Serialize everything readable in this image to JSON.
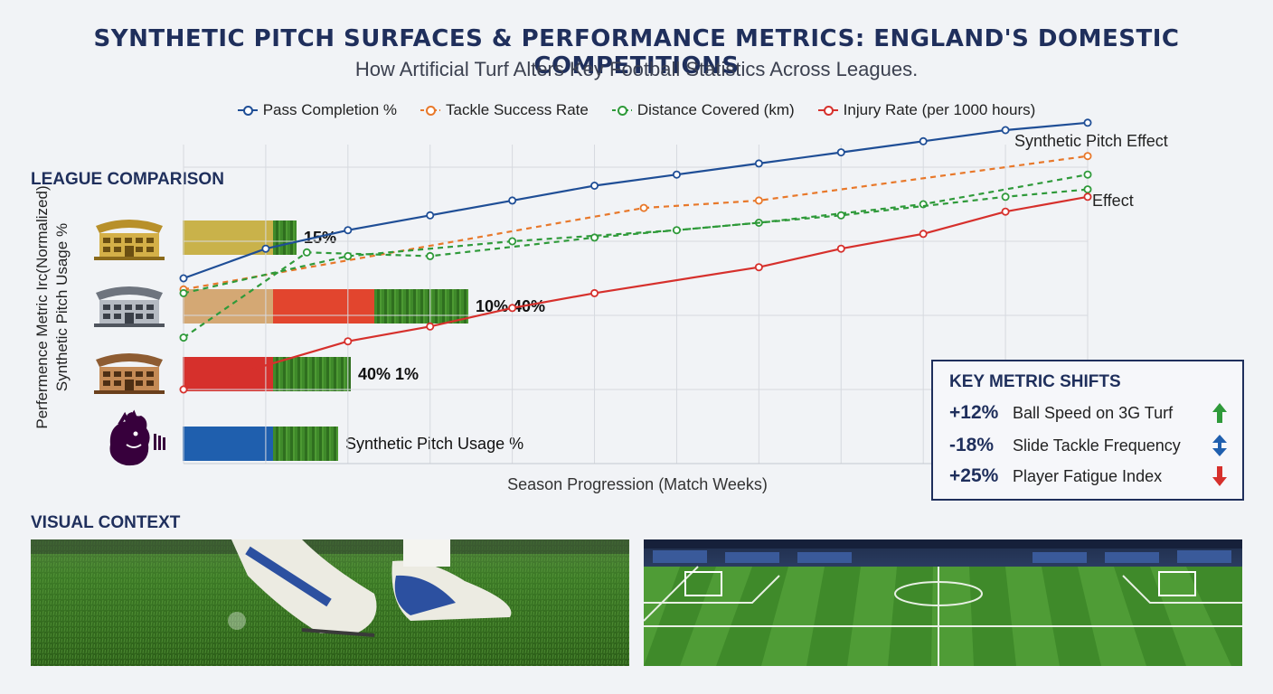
{
  "title": "SYNTHETIC PITCH SURFACES & PERFORMANCE METRICS: ENGLAND'S DOMESTIC COMPETITIONS",
  "subtitle": "How Artificial Turf Alters Key Football Statistics Across Leagues.",
  "colors": {
    "blue": "#1f4e96",
    "orange": "#e8782a",
    "green": "#2f9a3a",
    "red": "#d6302c",
    "navy": "#1f2f5c"
  },
  "league_comparison": {
    "label": "LEAGUE COMPARISON",
    "rows": [
      {
        "icon": "stadium-gold-icon",
        "segments": [
          {
            "color": "#c9b24a",
            "value": 50
          },
          {
            "color": "turf",
            "value": 13
          }
        ],
        "label": "15%"
      },
      {
        "icon": "stadium-grey-icon",
        "segments": [
          {
            "color": "#d4a874",
            "value": 50
          },
          {
            "color": "#e2452e",
            "value": 56
          },
          {
            "color": "turf",
            "value": 52
          }
        ],
        "label": "10% 40%"
      },
      {
        "icon": "stadium-bronze-icon",
        "segments": [
          {
            "color": "#d6302c",
            "value": 50
          },
          {
            "color": "turf",
            "value": 43
          }
        ],
        "label": "40% 1%"
      },
      {
        "icon": "premier-league-lion-icon",
        "segments": [
          {
            "color": "#1f5fae",
            "value": 50
          },
          {
            "color": "turf",
            "value": 36
          }
        ],
        "label": "Synthetic Pitch Usage %"
      }
    ]
  },
  "chart_data": {
    "type": "line",
    "title": "SYNTHETIC PITCH SURFACES & PERFORMANCE METRICS: ENGLAND'S DOMESTIC COMPETITIONS",
    "subtitle": "How Artificial Turf Alters Key Football Statistics Across Leagues.",
    "xlabel": "Season Progression (Match Weeks)",
    "ylabel": "Perfermence Metric Irc(Normalized) Synthetic Pitch Usage %",
    "x": [
      0,
      1,
      2,
      3,
      4,
      5,
      6,
      7,
      8,
      9,
      10,
      11
    ],
    "xlim": [
      0,
      11
    ],
    "ylim": [
      0,
      100
    ],
    "grid": true,
    "legend_position": "top",
    "series": [
      {
        "name": "Pass Completion %",
        "style": "solid",
        "color": "#1f4e96",
        "x": [
          0,
          1,
          2,
          3,
          4,
          5,
          6,
          7,
          8,
          9,
          10,
          11
        ],
        "values": [
          50,
          58,
          63,
          67,
          71,
          75,
          78,
          81,
          84,
          87,
          90,
          92
        ]
      },
      {
        "name": "Tackle Success Rate",
        "style": "dashed",
        "color": "#e8782a",
        "x": [
          0,
          5.6,
          7,
          11
        ],
        "values": [
          47,
          69,
          71,
          83
        ]
      },
      {
        "name": "Distance Covered (km)",
        "style": "dashed",
        "color": "#2f9a3a",
        "x": [
          0,
          1.5,
          3,
          5,
          7,
          9,
          11
        ],
        "values": [
          34,
          57,
          56,
          61,
          65,
          70,
          78
        ]
      },
      {
        "name": "Distance Covered (km)",
        "style": "dashed",
        "color": "#2f9a3a",
        "x": [
          0,
          2,
          4,
          6,
          8,
          10,
          11
        ],
        "values": [
          46,
          56,
          60,
          63,
          67,
          72,
          74
        ]
      },
      {
        "name": "Injury Rate (per 1000 hours)",
        "style": "solid",
        "color": "#d6302c",
        "x": [
          0,
          2,
          3,
          4,
          5,
          7,
          8,
          9,
          10,
          11
        ],
        "values": [
          20,
          33,
          37,
          42,
          46,
          53,
          58,
          62,
          68,
          72
        ]
      }
    ],
    "annotations": [
      "Synthetic Pitch Effect",
      "Effect"
    ]
  },
  "x_label": "Season Progression (Match Weeks)",
  "y_label_line1": "Perfermence Metric Irc(Normalized)",
  "y_label_line2": "Synthetic Pitch Usage %",
  "annotation_1": "Synthetic Pitch Effect",
  "annotation_2": "Effect",
  "key_metric_shifts": {
    "title": "KEY METRIC SHIFTS",
    "items": [
      {
        "value": "+12%",
        "label": "Ball Speed on 3G Turf",
        "icon": "arrow-up-icon"
      },
      {
        "value": "-18%",
        "label": "Slide Tackle Frequency",
        "icon": "arrow-up-down-icon"
      },
      {
        "value": "+25%",
        "label": "Player Fatigue Index",
        "icon": "arrow-down-icon"
      }
    ]
  },
  "visual_context": {
    "label": "VISUAL CONTEXT",
    "photos": [
      "boots-on-turf-photo",
      "stadium-pitch-photo"
    ]
  }
}
